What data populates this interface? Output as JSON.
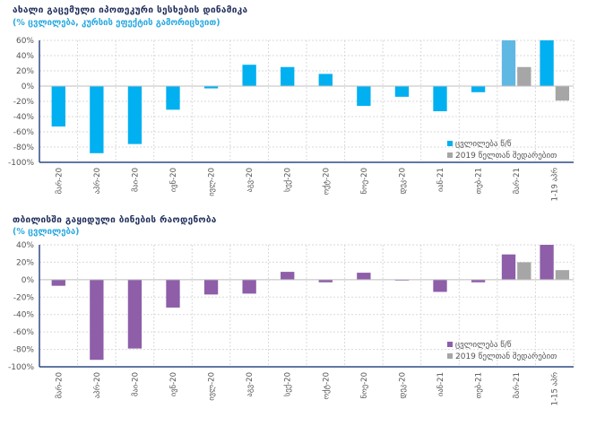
{
  "charts": [
    {
      "title": "ახალი გაცემული იპოთეკური სესხების დინამიკა",
      "subtitle": "(% ცვლილება, კურსის ეფექტის გამორიცხვით)",
      "legend": [
        "ცვლილება წ/წ",
        "2019 წელთან შედარებით"
      ],
      "colors": {
        "series1": "#00b0f0",
        "series1_alt": "#5fb8e4",
        "series2": "#a6a6a6",
        "subtitle": "#29a9e1",
        "axis": "#2e4a85",
        "grid": "#d9d9d9"
      }
    },
    {
      "title": "თბილისში გაყიდული ბინების რაოდენობა",
      "subtitle": "(% ცვლილება)",
      "legend": [
        "ცვლილება წ/წ",
        "2019 წელთან შედარებით"
      ],
      "colors": {
        "series1": "#8e5ea9",
        "series2": "#a6a6a6",
        "subtitle": "#29a9e1",
        "axis": "#2e4a85",
        "grid": "#d9d9d9"
      }
    }
  ],
  "chart_data": [
    {
      "type": "bar",
      "categories": [
        "მარ-20",
        "აპრ-20",
        "მაი-20",
        "ივნ-20",
        "ივლ-20",
        "აგვ-20",
        "სექ-20",
        "ოქტ-20",
        "ნოე-20",
        "დეკ-20",
        "იან-21",
        "თებ-21",
        "მარ-21",
        "1-19 აპრ"
      ],
      "yticks": [
        "60%",
        "40%",
        "20%",
        "0%",
        "-20%",
        "-40%",
        "-60%",
        "-80%",
        "-100%"
      ],
      "ylim": [
        -100,
        60
      ],
      "grid": true,
      "legend_position": "bottom-right",
      "series": [
        {
          "name": "ცვლილება წ/წ",
          "values": [
            -53,
            -88,
            -76,
            -31,
            -3,
            28,
            25,
            16,
            -26,
            -14,
            -33,
            -8,
            60,
            60
          ]
        },
        {
          "name": "2019 წელთან შედარებით",
          "values": [
            null,
            null,
            null,
            null,
            null,
            null,
            null,
            null,
            null,
            null,
            null,
            null,
            25,
            -19
          ]
        }
      ]
    },
    {
      "type": "bar",
      "categories": [
        "მარ-20",
        "აპრ-20",
        "მაი-20",
        "ივნ-20",
        "ივლ-20",
        "აგვ-20",
        "სექ-20",
        "ოქტ-20",
        "ნოე-20",
        "დეკ-20",
        "იან-21",
        "თებ-21",
        "მარ-21",
        "1-15 აპრ"
      ],
      "yticks": [
        "40%",
        "20%",
        "0%",
        "-20%",
        "-40%",
        "-60%",
        "-80%",
        "-100%"
      ],
      "ylim": [
        -100,
        40
      ],
      "grid": true,
      "legend_position": "bottom-right",
      "series": [
        {
          "name": "ცვლილება წ/წ",
          "values": [
            -7,
            -92,
            -79,
            -32,
            -17,
            -16,
            9,
            -3,
            8,
            -1,
            -14,
            -3,
            29,
            40
          ]
        },
        {
          "name": "2019 წელთან შედარებით",
          "values": [
            null,
            null,
            null,
            null,
            null,
            null,
            null,
            null,
            null,
            null,
            null,
            null,
            20,
            11
          ]
        }
      ]
    }
  ]
}
